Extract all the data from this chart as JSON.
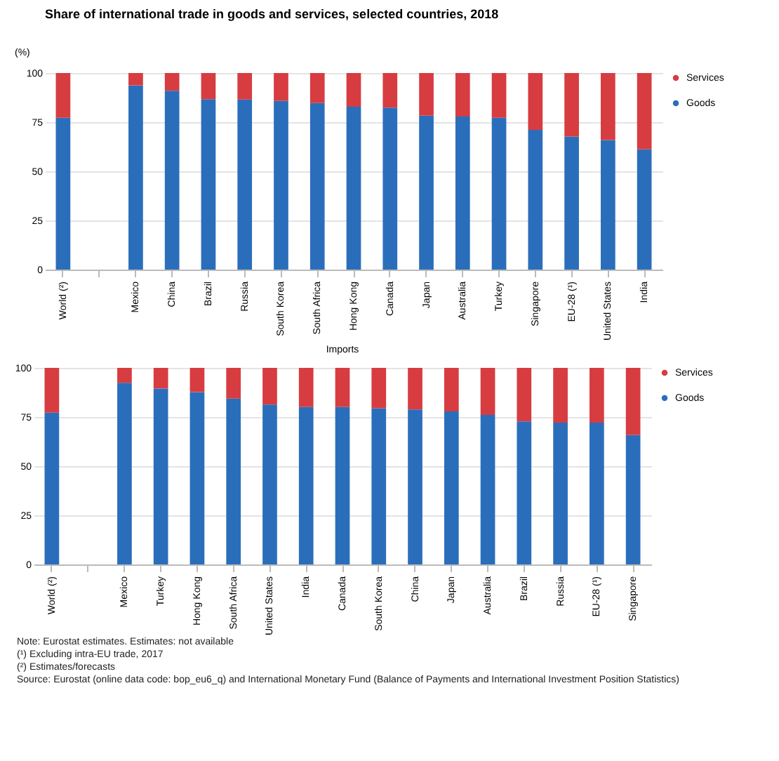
{
  "chart_data": [
    {
      "type": "bar",
      "title": "Share of international trade in goods and services, selected countries, 2018",
      "ylabel": "(%)",
      "stacked": true,
      "legend": "right",
      "grid": "y",
      "ylim": [
        0,
        100
      ],
      "yticks": [
        0,
        25,
        50,
        75,
        100
      ],
      "categories": [
        "World (²)",
        null,
        "Mexico",
        "China",
        "Brazil",
        "Russia",
        "South Korea",
        "South Africa",
        "Hong Kong",
        "Canada",
        "Japan",
        "Australia",
        "Turkey",
        "Singapore",
        "EU-28 (¹)",
        "United States",
        "India"
      ],
      "series": [
        {
          "name": "Goods",
          "color": "#2a6ebb",
          "values": [
            77.2,
            null,
            93.7,
            91.0,
            86.7,
            86.5,
            85.8,
            84.7,
            82.9,
            82.4,
            78.3,
            77.9,
            77.2,
            71.1,
            67.7,
            65.9,
            61.2
          ]
        },
        {
          "name": "Services",
          "color": "#d73c41",
          "values": [
            22.8,
            null,
            6.3,
            9.0,
            13.3,
            13.5,
            14.2,
            15.3,
            17.1,
            17.6,
            21.7,
            22.1,
            22.8,
            28.9,
            32.3,
            34.1,
            38.8
          ]
        }
      ]
    },
    {
      "type": "bar",
      "title": "Imports",
      "stacked": true,
      "legend": "right",
      "grid": "y",
      "ylim": [
        0,
        100
      ],
      "yticks": [
        0,
        25,
        50,
        75,
        100
      ],
      "categories": [
        "World (²)",
        null,
        "Mexico",
        "Turkey",
        "Hong Kong",
        "South Africa",
        "United States",
        "India",
        "Canada",
        "South Korea",
        "China",
        "Japan",
        "Australia",
        "Brazil",
        "Russia",
        "EU-28 (¹)",
        "Singapore"
      ],
      "series": [
        {
          "name": "Goods",
          "color": "#2a6ebb",
          "values": [
            77.2,
            null,
            92.4,
            89.5,
            87.7,
            84.4,
            81.3,
            80.1,
            80.1,
            79.5,
            78.8,
            77.9,
            76.1,
            72.8,
            72.1,
            72.1,
            65.8
          ]
        },
        {
          "name": "Services",
          "color": "#d73c41",
          "values": [
            22.8,
            null,
            7.6,
            10.5,
            12.3,
            15.6,
            18.7,
            19.9,
            19.9,
            20.5,
            21.2,
            22.1,
            23.9,
            27.2,
            27.9,
            27.9,
            34.2
          ]
        }
      ],
      "annotations": [
        "Note: Eurostat estimates. Estimates: not available",
        "(¹) Excluding intra-EU trade, 2017",
        "(²) Estimates/forecasts",
        "Source: Eurostat (online data code: bop_eu6_q) and International Monetary Fund (Balance of Payments and International Investment Position Statistics)"
      ]
    }
  ]
}
